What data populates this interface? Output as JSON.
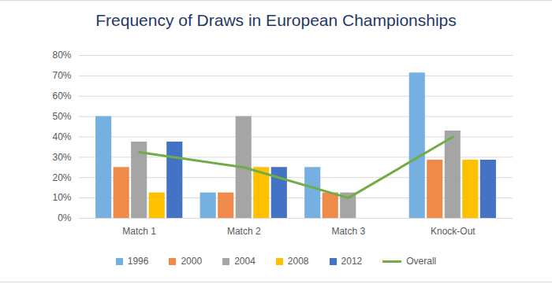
{
  "chart_data": {
    "type": "bar",
    "title": "Frequency of Draws in European Championships",
    "categories": [
      "Match 1",
      "Match 2",
      "Match 3",
      "Knock-Out"
    ],
    "series": [
      {
        "name": "1996",
        "color": "#75b0e0",
        "values": [
          50,
          12.5,
          25,
          71.4
        ]
      },
      {
        "name": "2000",
        "color": "#f08a4b",
        "values": [
          25,
          12.5,
          12.5,
          28.6
        ]
      },
      {
        "name": "2004",
        "color": "#a5a5a5",
        "values": [
          37.5,
          50,
          12.5,
          42.9
        ]
      },
      {
        "name": "2008",
        "color": "#ffc000",
        "values": [
          12.5,
          25,
          0,
          28.6
        ]
      },
      {
        "name": "2012",
        "color": "#4472c4",
        "values": [
          37.5,
          25,
          0,
          28.6
        ]
      },
      {
        "name": "Overall",
        "color": "#70ad47",
        "type": "line",
        "values": [
          32.5,
          25,
          10,
          40
        ]
      }
    ],
    "ylim": [
      0,
      80
    ],
    "yticks": [
      {
        "value": 0,
        "label": "0%"
      },
      {
        "value": 10,
        "label": "10%"
      },
      {
        "value": 20,
        "label": "20%"
      },
      {
        "value": 30,
        "label": "30%"
      },
      {
        "value": 40,
        "label": "40%"
      },
      {
        "value": 50,
        "label": "50%"
      },
      {
        "value": 60,
        "label": "60%"
      },
      {
        "value": 70,
        "label": "70%"
      },
      {
        "value": 80,
        "label": "80%"
      }
    ],
    "grid": true,
    "legend": "bottom"
  }
}
